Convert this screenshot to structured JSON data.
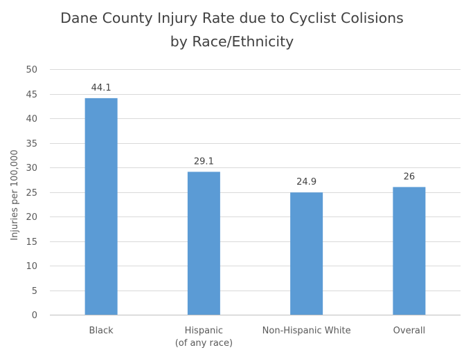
{
  "chart_data": {
    "type": "bar",
    "title_lines": [
      "Dane County Injury Rate due to Cyclist Colisions",
      "by Race/Ethnicity"
    ],
    "xlabel": "",
    "ylabel": "Injuries per 100,000",
    "ylim": [
      0,
      50
    ],
    "yticks": [
      0,
      5,
      10,
      15,
      20,
      25,
      30,
      35,
      40,
      45,
      50
    ],
    "categories": [
      {
        "lines": [
          "Black"
        ]
      },
      {
        "lines": [
          "Hispanic",
          "(of any race)"
        ]
      },
      {
        "lines": [
          "Non-Hispanic White"
        ]
      },
      {
        "lines": [
          "Overall"
        ]
      }
    ],
    "values": [
      44.1,
      29.1,
      24.9,
      26
    ],
    "data_labels": [
      "44.1",
      "29.1",
      "24.9",
      "26"
    ],
    "bar_color": "#5B9BD5",
    "grid": true,
    "legend": "none"
  }
}
